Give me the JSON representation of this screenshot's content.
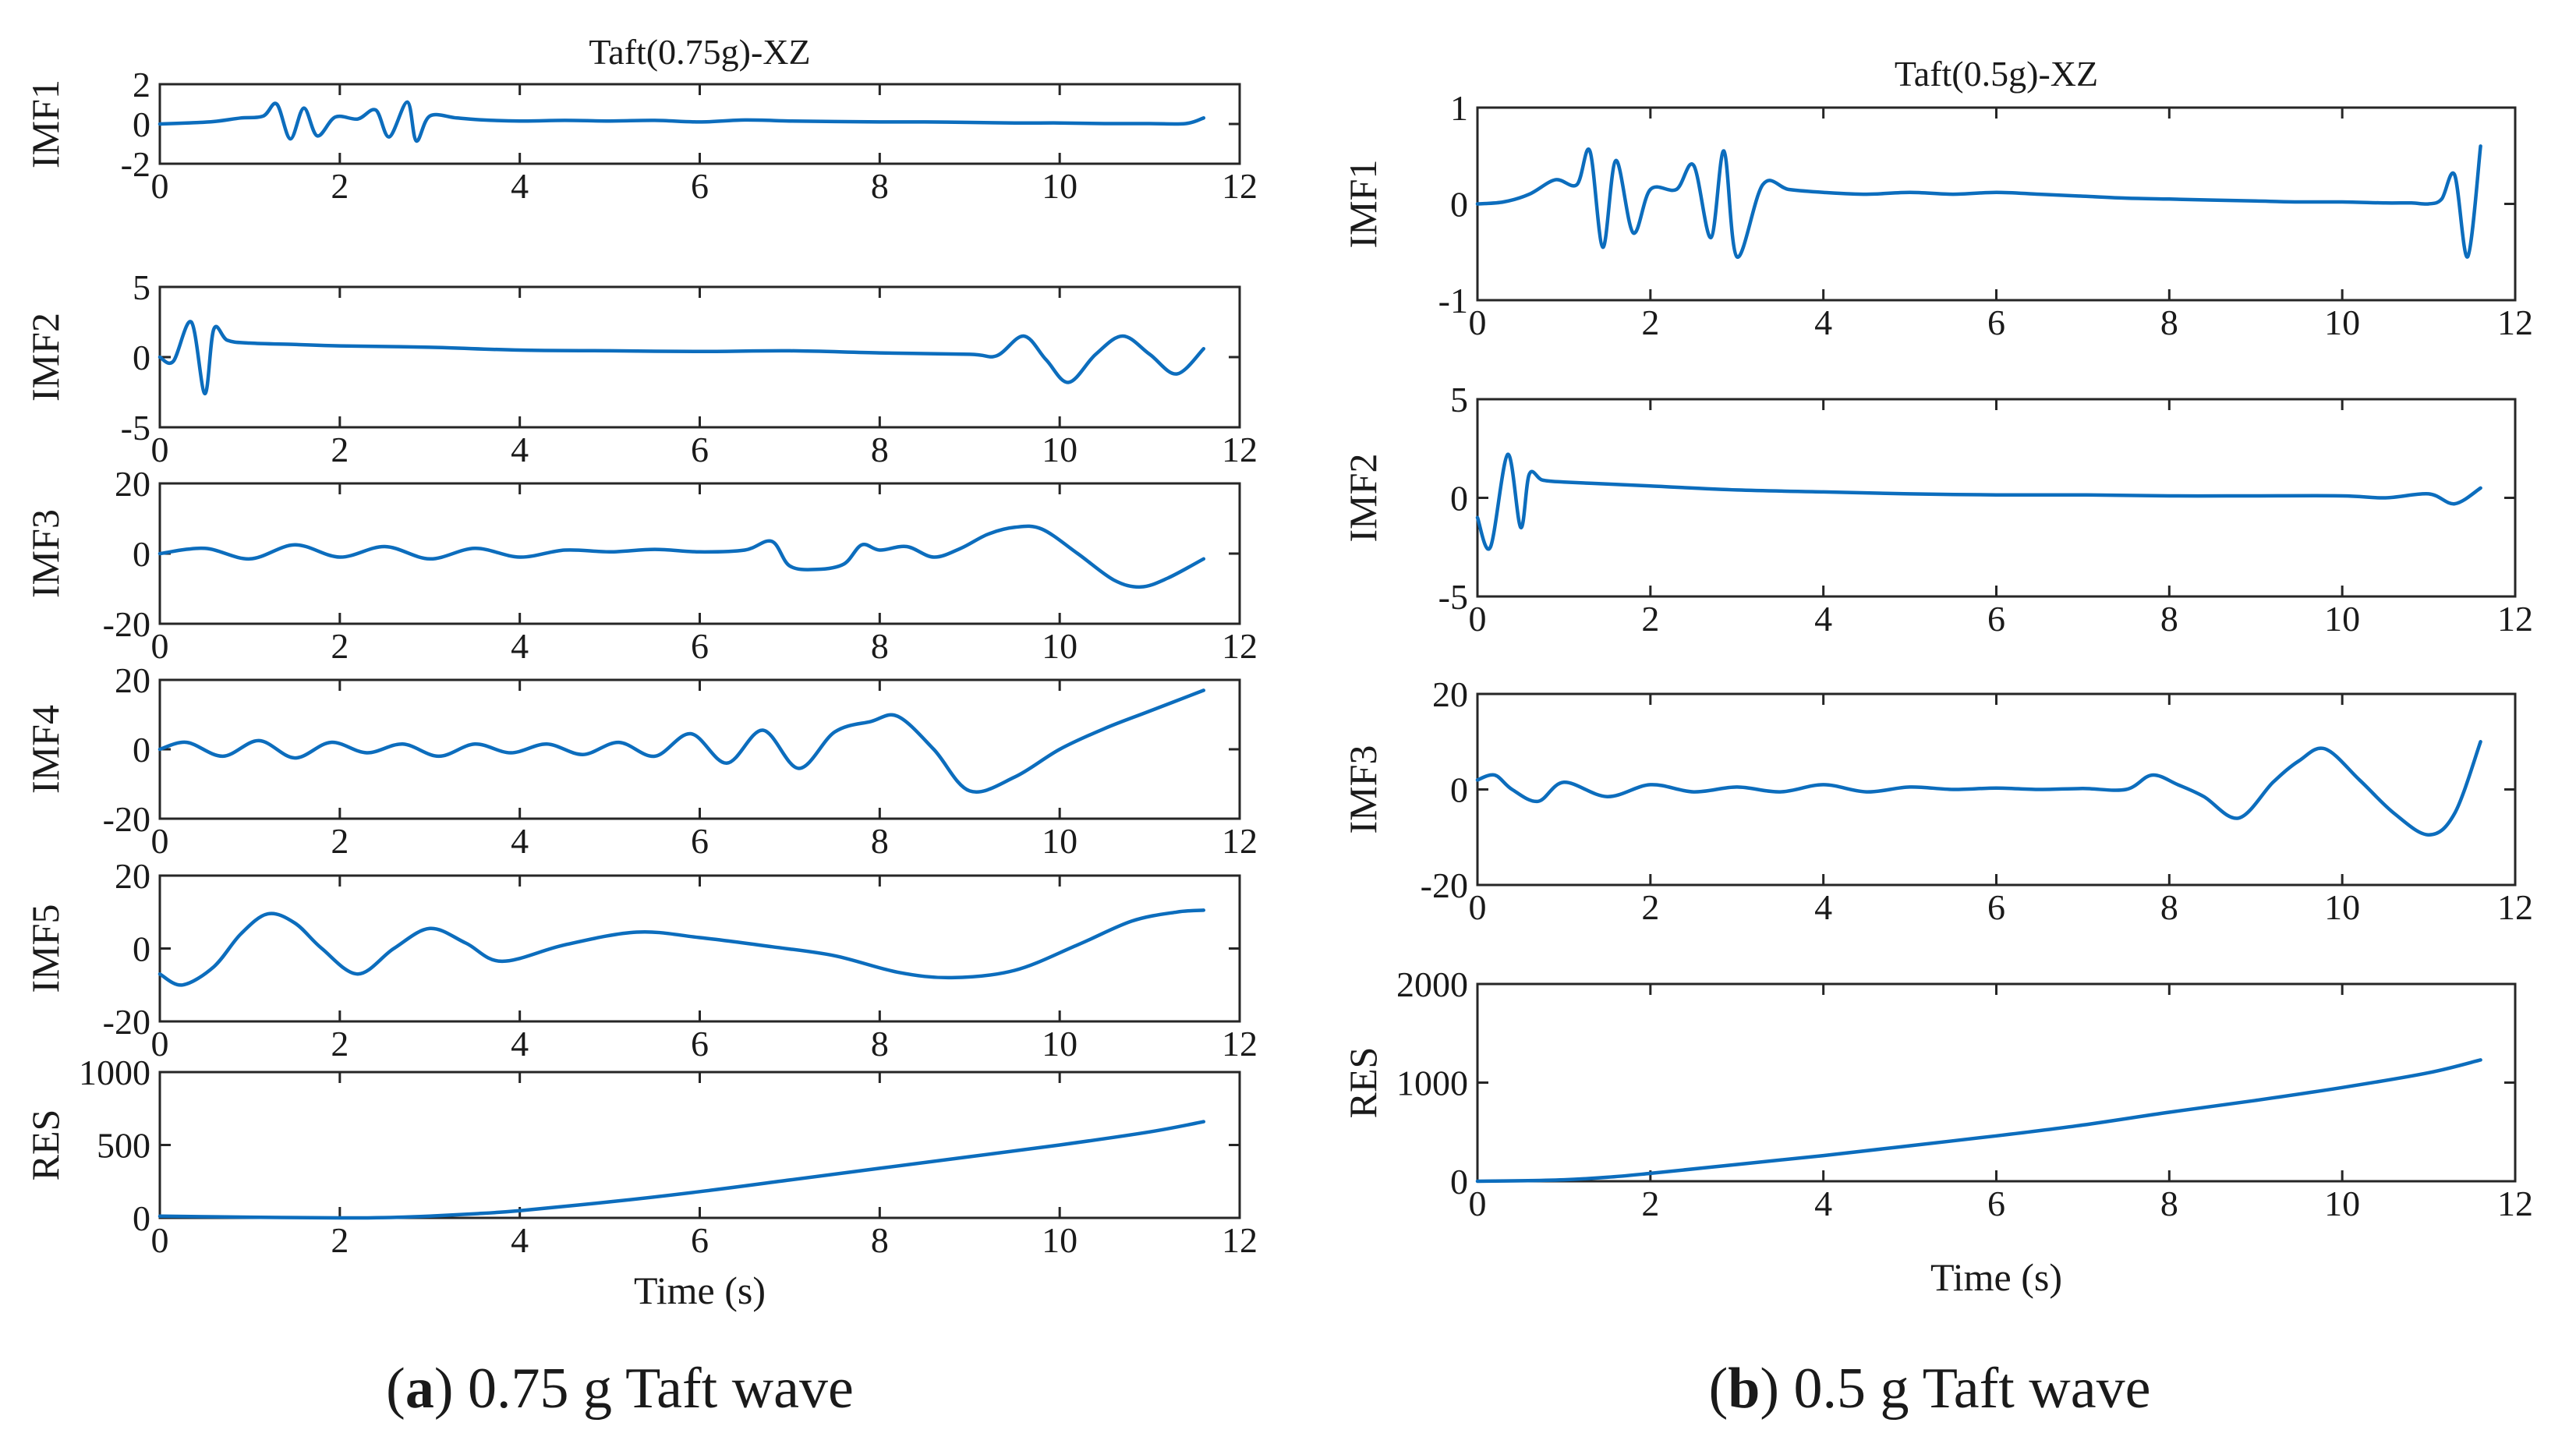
{
  "colors": {
    "series": "#0c6dbd",
    "axis": "#262626"
  },
  "captions": {
    "a": {
      "label": "a",
      "text": " 0.75 g Taft wave"
    },
    "b": {
      "label": "b",
      "text": " 0.5 g Taft wave"
    }
  },
  "chart_data": [
    {
      "type": "line",
      "title": "Taft(0.75g)-XZ",
      "xlabel": "Time (s)",
      "xlim": [
        0,
        12
      ],
      "xticks": [
        0,
        2,
        4,
        6,
        8,
        10,
        12
      ],
      "panels": [
        {
          "ylabel": "IMF1",
          "ylim": [
            -2,
            2
          ],
          "yticks": [
            -2,
            0,
            2
          ],
          "x": [
            0,
            0.3,
            0.6,
            0.9,
            1.15,
            1.3,
            1.45,
            1.6,
            1.75,
            1.95,
            2.2,
            2.4,
            2.55,
            2.75,
            2.85,
            3.0,
            3.3,
            3.6,
            4.0,
            4.5,
            5.0,
            5.5,
            6.0,
            6.5,
            7.0,
            7.5,
            8.0,
            8.5,
            9.0,
            9.5,
            10.0,
            10.5,
            11.0,
            11.4,
            11.6
          ],
          "y": [
            0,
            0.05,
            0.12,
            0.3,
            0.4,
            1.0,
            -0.75,
            0.8,
            -0.6,
            0.35,
            0.25,
            0.7,
            -0.65,
            1.1,
            -0.85,
            0.4,
            0.3,
            0.2,
            0.15,
            0.18,
            0.15,
            0.18,
            0.1,
            0.2,
            0.15,
            0.12,
            0.1,
            0.1,
            0.08,
            0.05,
            0.05,
            0.02,
            0.02,
            0.02,
            0.3
          ]
        },
        {
          "ylabel": "IMF2",
          "ylim": [
            -5,
            5
          ],
          "yticks": [
            -5,
            0,
            5
          ],
          "x": [
            0,
            0.15,
            0.35,
            0.5,
            0.6,
            0.75,
            1.0,
            1.5,
            2.0,
            3.0,
            4.0,
            5.0,
            6.0,
            7.0,
            8.0,
            9.0,
            9.3,
            9.6,
            9.85,
            10.1,
            10.4,
            10.7,
            11.0,
            11.3,
            11.6
          ],
          "y": [
            0,
            -0.3,
            2.5,
            -2.6,
            2.0,
            1.2,
            1.0,
            0.9,
            0.8,
            0.7,
            0.5,
            0.45,
            0.4,
            0.45,
            0.3,
            0.2,
            0.1,
            1.5,
            -0.2,
            -1.8,
            0.2,
            1.5,
            0.2,
            -1.2,
            0.6
          ]
        },
        {
          "ylabel": "IMF3",
          "ylim": [
            -20,
            20
          ],
          "yticks": [
            -20,
            0,
            20
          ],
          "x": [
            0,
            0.5,
            1.0,
            1.5,
            2.0,
            2.5,
            3.0,
            3.5,
            4.0,
            4.5,
            5.0,
            5.5,
            6.0,
            6.5,
            6.8,
            7.0,
            7.3,
            7.6,
            7.8,
            8.0,
            8.3,
            8.6,
            8.9,
            9.2,
            9.5,
            9.8,
            10.2,
            10.6,
            10.9,
            11.2,
            11.6
          ],
          "y": [
            0,
            1.5,
            -1.5,
            2.5,
            -1.0,
            2.0,
            -1.5,
            1.5,
            -1.0,
            1.0,
            0.5,
            1.2,
            0.5,
            1.0,
            3.5,
            -3.5,
            -4.5,
            -3.0,
            2.5,
            1.0,
            2.0,
            -1.0,
            1.5,
            5.5,
            7.5,
            7.0,
            0.0,
            -7.5,
            -9.5,
            -7.0,
            -1.5
          ]
        },
        {
          "ylabel": "IMF4",
          "ylim": [
            -20,
            20
          ],
          "yticks": [
            -20,
            0,
            20
          ],
          "x": [
            0,
            0.3,
            0.7,
            1.1,
            1.5,
            1.9,
            2.3,
            2.7,
            3.1,
            3.5,
            3.9,
            4.3,
            4.7,
            5.1,
            5.5,
            5.9,
            6.3,
            6.7,
            7.1,
            7.5,
            7.9,
            8.2,
            8.6,
            9.0,
            9.5,
            10.0,
            10.5,
            11.0,
            11.6
          ],
          "y": [
            0,
            2,
            -2,
            2.5,
            -2.5,
            2.0,
            -1.0,
            1.5,
            -2.0,
            1.5,
            -1.0,
            1.5,
            -1.5,
            2.0,
            -2.0,
            4.5,
            -4.0,
            5.5,
            -5.5,
            5.0,
            8.0,
            9.5,
            0.0,
            -12.0,
            -8.0,
            0.0,
            6.0,
            11.0,
            17.0
          ]
        },
        {
          "ylabel": "IMF5",
          "ylim": [
            -20,
            20
          ],
          "yticks": [
            -20,
            0,
            20
          ],
          "x": [
            0,
            0.25,
            0.6,
            0.9,
            1.2,
            1.5,
            1.8,
            2.2,
            2.6,
            3.0,
            3.4,
            3.8,
            4.5,
            5.3,
            6.0,
            6.8,
            7.5,
            8.2,
            8.8,
            9.5,
            10.2,
            10.8,
            11.3,
            11.6
          ],
          "y": [
            -7,
            -10,
            -5,
            4,
            9.5,
            7,
            0,
            -7,
            0,
            5.5,
            1.5,
            -3.5,
            1.0,
            4.5,
            3.0,
            0.5,
            -2.0,
            -6.5,
            -8.0,
            -6.0,
            1.0,
            7.5,
            10.0,
            10.5
          ]
        },
        {
          "ylabel": "RES",
          "ylim": [
            0,
            1000
          ],
          "yticks": [
            0,
            500,
            1000
          ],
          "x": [
            0,
            1,
            2,
            2.5,
            3,
            3.5,
            4,
            5,
            6,
            7,
            8,
            9,
            10,
            11,
            11.6
          ],
          "y": [
            12,
            5,
            0,
            2,
            12,
            28,
            50,
            110,
            180,
            260,
            340,
            420,
            500,
            590,
            660
          ]
        }
      ]
    },
    {
      "type": "line",
      "title": "Taft(0.5g)-XZ",
      "xlabel": "Time (s)",
      "xlim": [
        0,
        12
      ],
      "xticks": [
        0,
        2,
        4,
        6,
        8,
        10,
        12
      ],
      "panels": [
        {
          "ylabel": "IMF1",
          "ylim": [
            -1,
            1
          ],
          "yticks": [
            -1,
            0,
            1
          ],
          "x": [
            0,
            0.3,
            0.6,
            0.9,
            1.15,
            1.3,
            1.45,
            1.6,
            1.8,
            2.0,
            2.3,
            2.5,
            2.7,
            2.85,
            3.0,
            3.3,
            3.6,
            4.0,
            4.5,
            5.0,
            5.5,
            6.0,
            6.5,
            7.0,
            7.5,
            8.0,
            8.5,
            9.0,
            9.5,
            10.0,
            10.5,
            10.8,
            11.0,
            11.15,
            11.3,
            11.45,
            11.6
          ],
          "y": [
            0,
            0.02,
            0.1,
            0.25,
            0.2,
            0.55,
            -0.45,
            0.45,
            -0.3,
            0.15,
            0.15,
            0.4,
            -0.35,
            0.55,
            -0.55,
            0.2,
            0.15,
            0.12,
            0.1,
            0.12,
            0.1,
            0.12,
            0.1,
            0.08,
            0.06,
            0.05,
            0.04,
            0.03,
            0.02,
            0.02,
            0.01,
            0.01,
            0.0,
            0.05,
            0.3,
            -0.55,
            0.6
          ]
        },
        {
          "ylabel": "IMF2",
          "ylim": [
            -5,
            5
          ],
          "yticks": [
            -5,
            0,
            5
          ],
          "x": [
            0,
            0.15,
            0.35,
            0.5,
            0.6,
            0.75,
            1.0,
            1.5,
            2.0,
            3.0,
            4.0,
            5.0,
            6.0,
            7.0,
            8.0,
            9.0,
            10.0,
            10.5,
            11.0,
            11.3,
            11.6
          ],
          "y": [
            -1,
            -2.5,
            2.2,
            -1.5,
            1.2,
            0.9,
            0.8,
            0.7,
            0.6,
            0.4,
            0.3,
            0.2,
            0.15,
            0.15,
            0.1,
            0.1,
            0.1,
            0.0,
            0.2,
            -0.3,
            0.5
          ]
        },
        {
          "ylabel": "IMF3",
          "ylim": [
            -20,
            20
          ],
          "yticks": [
            -20,
            0,
            20
          ],
          "x": [
            0,
            0.2,
            0.4,
            0.7,
            1.0,
            1.5,
            2.0,
            2.5,
            3.0,
            3.5,
            4.0,
            4.5,
            5.0,
            5.5,
            6.0,
            6.5,
            7.0,
            7.5,
            7.8,
            8.1,
            8.4,
            8.8,
            9.2,
            9.5,
            9.8,
            10.2,
            10.6,
            11.0,
            11.3,
            11.6
          ],
          "y": [
            2,
            3,
            0,
            -2.5,
            1.5,
            -1.5,
            1.0,
            -0.5,
            0.5,
            -0.5,
            1.0,
            -0.5,
            0.5,
            0.0,
            0.3,
            0.0,
            0.2,
            0.0,
            3.0,
            1.0,
            -1.5,
            -6.0,
            1.5,
            6.0,
            8.5,
            2.0,
            -5.0,
            -9.5,
            -5.0,
            10.0
          ]
        },
        {
          "ylabel": "RES",
          "ylim": [
            0,
            2000
          ],
          "yticks": [
            0,
            1000,
            2000
          ],
          "x": [
            0,
            0.5,
            1,
            1.5,
            2,
            3,
            4,
            5,
            6,
            7,
            8,
            9,
            10,
            11,
            11.6
          ],
          "y": [
            0,
            5,
            15,
            40,
            80,
            170,
            260,
            360,
            460,
            570,
            700,
            820,
            950,
            1100,
            1230
          ]
        }
      ]
    }
  ]
}
